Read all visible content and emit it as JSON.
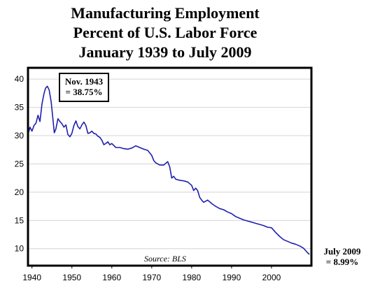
{
  "chart_data": {
    "type": "line",
    "title_lines": [
      "Manufacturing Employment",
      "Percent of U.S. Labor Force",
      "January 1939 to July 2009"
    ],
    "xlabel": "",
    "ylabel": "",
    "xlim": [
      1939,
      2010
    ],
    "ylim": [
      7,
      42
    ],
    "x_ticks": [
      1940,
      1950,
      1960,
      1970,
      1980,
      1990,
      2000
    ],
    "y_ticks": [
      10,
      15,
      20,
      25,
      30,
      35,
      40
    ],
    "grid": "horizontal",
    "line_color": "#1f1fb0",
    "source": "Source: BLS",
    "annotations": [
      {
        "lines": [
          "Nov. 1943",
          "= 38.75%"
        ],
        "x": 1943.83,
        "y": 38.75
      },
      {
        "lines": [
          "July 2009",
          "= 8.99%"
        ],
        "x": 2009.5,
        "y": 8.99
      }
    ],
    "series": [
      {
        "x": [
          1939.0,
          1939.5,
          1940.0,
          1940.5,
          1941.0,
          1941.5,
          1942.0,
          1942.5,
          1943.0,
          1943.4,
          1943.83,
          1944.3,
          1944.8,
          1945.2,
          1945.6,
          1946.0,
          1946.5,
          1947.0,
          1947.5,
          1948.0,
          1948.5,
          1949.0,
          1949.5,
          1950.0,
          1950.5,
          1951.0,
          1951.5,
          1952.0,
          1952.5,
          1953.0,
          1953.5,
          1954.0,
          1954.5,
          1955.0,
          1955.5,
          1956.0,
          1956.5,
          1957.0,
          1957.5,
          1958.0,
          1958.5,
          1959.0,
          1959.5,
          1960.0,
          1961.0,
          1962.0,
          1963.0,
          1964.0,
          1965.0,
          1966.0,
          1967.0,
          1968.0,
          1969.0,
          1970.0,
          1970.5,
          1971.0,
          1972.0,
          1973.0,
          1974.0,
          1974.5,
          1975.0,
          1975.5,
          1976.0,
          1977.0,
          1978.0,
          1979.0,
          1980.0,
          1980.5,
          1981.0,
          1981.5,
          1982.0,
          1982.5,
          1983.0,
          1984.0,
          1985.0,
          1986.0,
          1987.0,
          1988.0,
          1989.0,
          1990.0,
          1991.0,
          1992.0,
          1993.0,
          1994.0,
          1995.0,
          1996.0,
          1997.0,
          1998.0,
          1999.0,
          2000.0,
          2001.0,
          2002.0,
          2003.0,
          2004.0,
          2005.0,
          2006.0,
          2007.0,
          2008.0,
          2009.0,
          2009.5
        ],
        "values": [
          30.2,
          31.5,
          30.8,
          31.8,
          32.2,
          33.6,
          32.5,
          35.6,
          37.4,
          38.4,
          38.75,
          38.1,
          36.0,
          33.2,
          30.5,
          31.2,
          33.0,
          32.5,
          32.1,
          31.5,
          31.9,
          30.2,
          29.8,
          30.4,
          31.8,
          32.6,
          31.6,
          31.2,
          31.9,
          32.4,
          31.8,
          30.4,
          30.5,
          30.8,
          30.4,
          30.3,
          29.9,
          29.7,
          29.2,
          28.4,
          28.6,
          28.9,
          28.4,
          28.6,
          27.9,
          27.9,
          27.7,
          27.6,
          27.8,
          28.2,
          27.9,
          27.6,
          27.4,
          26.5,
          25.6,
          25.2,
          24.8,
          24.8,
          25.4,
          24.5,
          22.5,
          22.8,
          22.3,
          22.1,
          22.0,
          21.8,
          21.2,
          20.3,
          20.7,
          20.3,
          19.1,
          18.6,
          18.2,
          18.6,
          18.0,
          17.5,
          17.1,
          16.9,
          16.5,
          16.2,
          15.7,
          15.4,
          15.1,
          14.9,
          14.7,
          14.5,
          14.3,
          14.1,
          13.8,
          13.7,
          12.9,
          12.2,
          11.6,
          11.3,
          11.0,
          10.8,
          10.5,
          10.1,
          9.3,
          8.99
        ]
      }
    ]
  }
}
